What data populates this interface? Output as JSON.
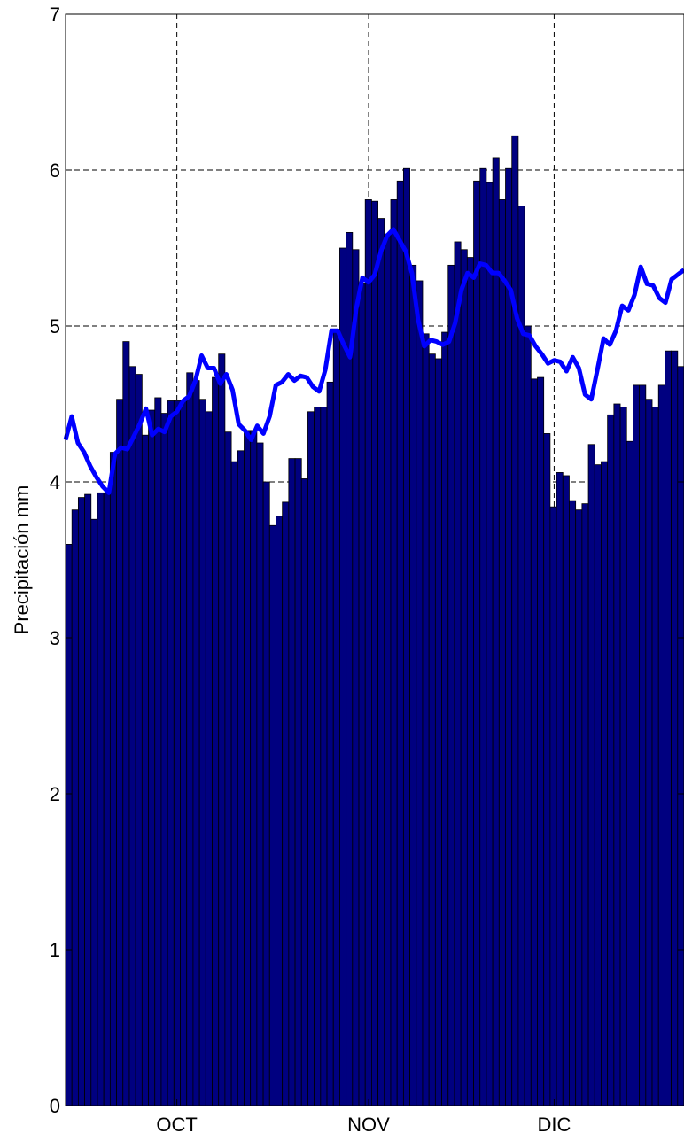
{
  "chart_data": {
    "type": "bar",
    "title": "",
    "xlabel": "",
    "ylabel": "Precipitación mm",
    "ylim": [
      0,
      7
    ],
    "yticks": [
      "0",
      "1",
      "2",
      "3",
      "4",
      "5",
      "6",
      "7"
    ],
    "xlim": [
      0,
      100
    ],
    "xtick_positions": [
      18,
      49,
      79
    ],
    "xtick_labels": [
      "OCT",
      "NOV",
      "DIC"
    ],
    "grid": true,
    "colors": {
      "bar_fill": "#000080",
      "bar_edge": "#000000",
      "line": "#0000ff"
    },
    "series": [
      {
        "type": "bar",
        "values": [
          3.6,
          3.82,
          3.9,
          3.92,
          3.76,
          3.93,
          3.93,
          4.19,
          4.53,
          4.9,
          4.74,
          4.69,
          4.3,
          4.46,
          4.54,
          4.44,
          4.52,
          4.52,
          4.52,
          4.7,
          4.65,
          4.53,
          4.45,
          4.67,
          4.82,
          4.32,
          4.13,
          4.2,
          4.33,
          4.33,
          4.25,
          4.0,
          3.72,
          3.78,
          3.87,
          4.15,
          4.15,
          4.02,
          4.45,
          4.48,
          4.48,
          4.64,
          4.98,
          5.5,
          5.6,
          5.49,
          5.27,
          5.81,
          5.8,
          5.69,
          5.59,
          5.81,
          5.93,
          6.01,
          5.39,
          5.29,
          4.95,
          4.82,
          4.79,
          4.96,
          5.39,
          5.54,
          5.49,
          5.44,
          5.93,
          6.01,
          5.92,
          6.08,
          5.81,
          6.01,
          6.22,
          5.77,
          5.0,
          4.66,
          4.67,
          4.31,
          3.84,
          4.06,
          4.04,
          3.88,
          3.82,
          3.86,
          4.24,
          4.11,
          4.13,
          4.43,
          4.5,
          4.48,
          4.26,
          4.62,
          4.62,
          4.53,
          4.48,
          4.62,
          4.84,
          4.84,
          4.74
        ]
      },
      {
        "type": "line",
        "values": [
          4.27,
          4.42,
          4.25,
          4.19,
          4.1,
          4.03,
          3.97,
          3.93,
          4.18,
          4.22,
          4.21,
          4.29,
          4.37,
          4.47,
          4.3,
          4.34,
          4.32,
          4.42,
          4.45,
          4.52,
          4.55,
          4.65,
          4.81,
          4.73,
          4.73,
          4.63,
          4.69,
          4.59,
          4.37,
          4.33,
          4.27,
          4.36,
          4.31,
          4.42,
          4.62,
          4.64,
          4.69,
          4.65,
          4.68,
          4.67,
          4.61,
          4.58,
          4.72,
          4.97,
          4.97,
          4.88,
          4.8,
          5.11,
          5.31,
          5.28,
          5.33,
          5.48,
          5.58,
          5.62,
          5.55,
          5.48,
          5.34,
          5.04,
          4.87,
          4.91,
          4.9,
          4.88,
          4.9,
          5.02,
          5.23,
          5.34,
          5.31,
          5.4,
          5.39,
          5.34,
          5.34,
          5.29,
          5.23,
          5.05,
          4.95,
          4.94,
          4.87,
          4.82,
          4.76,
          4.78,
          4.77,
          4.71,
          4.8,
          4.73,
          4.56,
          4.53,
          4.72,
          4.92,
          4.88,
          4.97,
          5.13,
          5.1,
          5.2,
          5.38,
          5.27,
          5.26,
          5.18,
          5.15,
          5.3,
          5.33,
          5.36
        ]
      }
    ]
  }
}
